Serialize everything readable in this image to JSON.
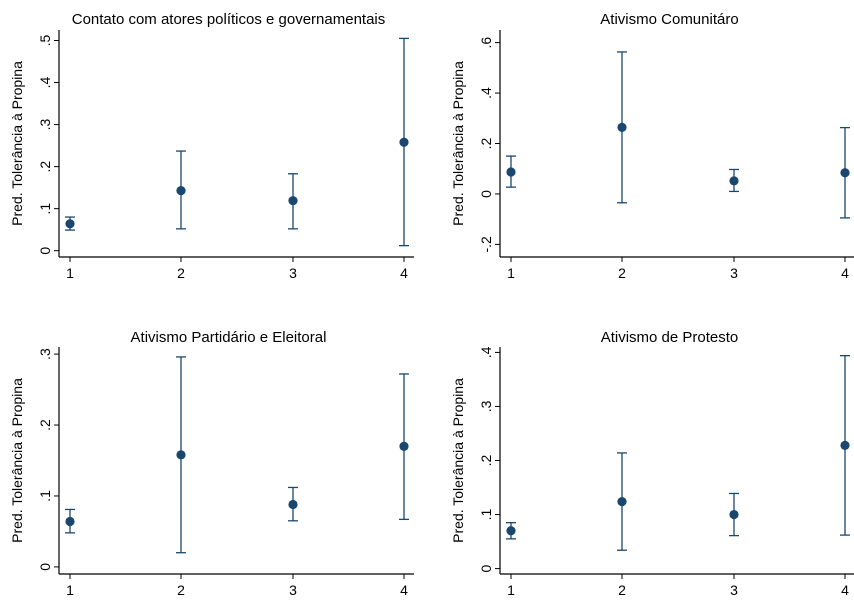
{
  "chart_data": [
    {
      "type": "scatter",
      "title": "Contato com atores políticos e governamentais",
      "ylabel": "Pred. Tolerância à Propina",
      "xlabel": "",
      "x": [
        1,
        2,
        3,
        4
      ],
      "xticks": [
        "1",
        "2",
        "3",
        "4"
      ],
      "yticks": [
        ".5",
        ".4",
        ".3",
        ".2",
        ".1",
        "0"
      ],
      "ytick_values": [
        0.5,
        0.4,
        0.3,
        0.2,
        0.1,
        0
      ],
      "ylim": [
        -0.015,
        0.525
      ],
      "estimate": [
        0.064,
        0.143,
        0.119,
        0.258
      ],
      "ci_low": [
        0.049,
        0.052,
        0.052,
        0.012
      ],
      "ci_high": [
        0.08,
        0.237,
        0.183,
        0.505
      ],
      "grid": false,
      "marker_color": "#1a476f"
    },
    {
      "type": "scatter",
      "title": "Ativismo Comunitáro",
      "ylabel": "Pred. Tolerância à Propina",
      "xlabel": "",
      "x": [
        1,
        2,
        3,
        4
      ],
      "xticks": [
        "1",
        "2",
        "3",
        "4"
      ],
      "yticks": [
        ".6",
        ".4",
        ".2",
        "0",
        "-.2"
      ],
      "ytick_values": [
        0.6,
        0.4,
        0.2,
        0,
        -0.2
      ],
      "ylim": [
        -0.25,
        0.65
      ],
      "estimate": [
        0.087,
        0.264,
        0.052,
        0.084
      ],
      "ci_low": [
        0.027,
        -0.035,
        0.01,
        -0.095
      ],
      "ci_high": [
        0.15,
        0.563,
        0.097,
        0.263
      ],
      "grid": false,
      "marker_color": "#1a476f"
    },
    {
      "type": "scatter",
      "title": "Ativismo Partidário e Eleitoral",
      "ylabel": "Pred. Tolerância à Propina",
      "xlabel": "",
      "x": [
        1,
        2,
        3,
        4
      ],
      "xticks": [
        "1",
        "2",
        "3",
        "4"
      ],
      "yticks": [
        ".3",
        ".2",
        ".1",
        "0"
      ],
      "ytick_values": [
        0.3,
        0.2,
        0.1,
        0
      ],
      "ylim": [
        -0.01,
        0.31
      ],
      "estimate": [
        0.064,
        0.158,
        0.088,
        0.17
      ],
      "ci_low": [
        0.048,
        0.02,
        0.065,
        0.067
      ],
      "ci_high": [
        0.081,
        0.296,
        0.112,
        0.272
      ],
      "grid": false,
      "marker_color": "#1a476f"
    },
    {
      "type": "scatter",
      "title": "Ativismo de Protesto",
      "ylabel": "Pred. Tolerância à Propina",
      "xlabel": "",
      "x": [
        1,
        2,
        3,
        4
      ],
      "xticks": [
        "1",
        "2",
        "3",
        "4"
      ],
      "yticks": [
        ".4",
        ".3",
        ".2",
        ".1",
        "0"
      ],
      "ytick_values": [
        0.4,
        0.3,
        0.2,
        0.1,
        0
      ],
      "ylim": [
        -0.01,
        0.41
      ],
      "estimate": [
        0.07,
        0.124,
        0.1,
        0.228
      ],
      "ci_low": [
        0.055,
        0.034,
        0.061,
        0.062
      ],
      "ci_high": [
        0.085,
        0.214,
        0.139,
        0.394
      ],
      "grid": false,
      "marker_color": "#1a476f"
    }
  ]
}
